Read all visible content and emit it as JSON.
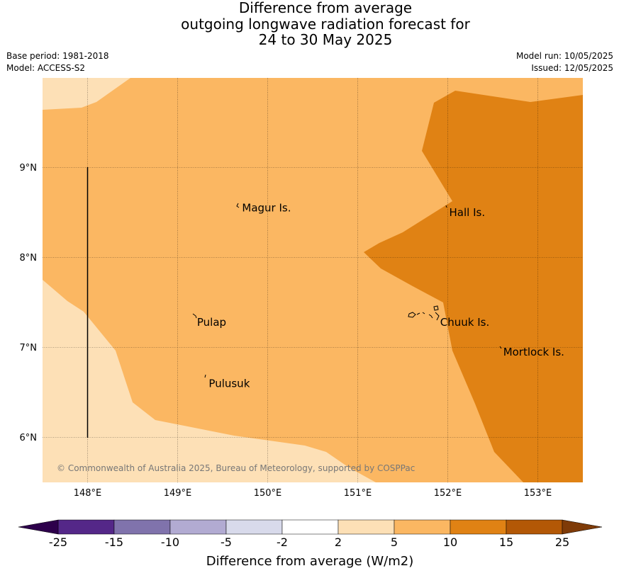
{
  "header": {
    "title_lines": [
      "Difference from average",
      "outgoing longwave radiation forecast for",
      "24 to 30 May 2025"
    ],
    "base_period": "Base period: 1981-2018",
    "model": "Model: ACCESS-S2",
    "model_run": "Model run: 10/05/2025",
    "issued": "Issued: 12/05/2025"
  },
  "map": {
    "lon_ticks": [
      "148°E",
      "149°E",
      "150°E",
      "151°E",
      "152°E",
      "153°E"
    ],
    "lat_ticks": [
      "9°N",
      "8°N",
      "7°N",
      "6°N"
    ],
    "places": [
      {
        "name": "Magur Is.",
        "lon": 149.7,
        "lat": 8.55
      },
      {
        "name": "Hall Is.",
        "lon": 152.0,
        "lat": 8.5
      },
      {
        "name": "Pulap",
        "lon": 149.2,
        "lat": 7.28
      },
      {
        "name": "Chuuk Is.",
        "lon": 151.9,
        "lat": 7.28
      },
      {
        "name": "Mortlock Is.",
        "lon": 152.6,
        "lat": 6.95
      },
      {
        "name": "Pulusuk",
        "lon": 149.33,
        "lat": 6.6
      }
    ],
    "credit": "© Commonwealth of Australia 2025, Bureau of Meteorology, supported by COSPPac",
    "region_colors": {
      "band_2_5": "#fde0b6",
      "band_5_10": "#fbb762",
      "band_10_15": "#e08214"
    }
  },
  "colorbar": {
    "label": "Difference from average (W/m2)",
    "ticks": [
      "-25",
      "-15",
      "-10",
      "-5",
      "-2",
      "2",
      "5",
      "10",
      "15",
      "25"
    ],
    "colors": [
      "#542788",
      "#8073ac",
      "#b2abd2",
      "#d8daeb",
      "#ffffff",
      "#fde0b6",
      "#fbb762",
      "#e08214",
      "#b35806"
    ],
    "under_color": "#2d004b",
    "over_color": "#7f3b08"
  }
}
